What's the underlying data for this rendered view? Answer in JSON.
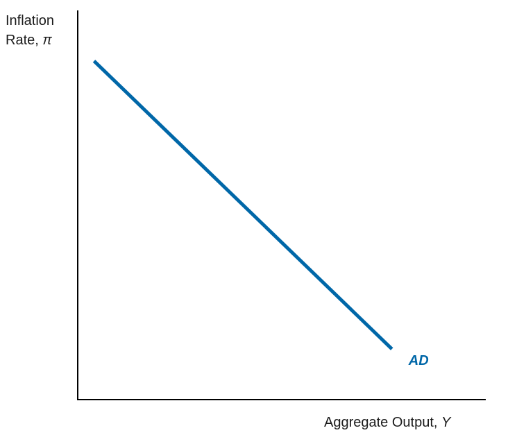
{
  "chart_data": {
    "type": "line",
    "title": "",
    "ylabel": {
      "line1": "Inflation",
      "line2_prefix": "Rate, ",
      "symbol": "π"
    },
    "xlabel": {
      "prefix": "Aggregate Output, ",
      "symbol": "Y"
    },
    "xlim": [
      0,
      10
    ],
    "ylim": [
      0,
      10
    ],
    "ticks": "none",
    "grid": false,
    "series": [
      {
        "name": "AD",
        "color": "#0067a8",
        "points": [
          {
            "x": 0.4,
            "y": 8.7
          },
          {
            "x": 7.7,
            "y": 1.3
          }
        ]
      }
    ],
    "axis_color": "#000000"
  }
}
